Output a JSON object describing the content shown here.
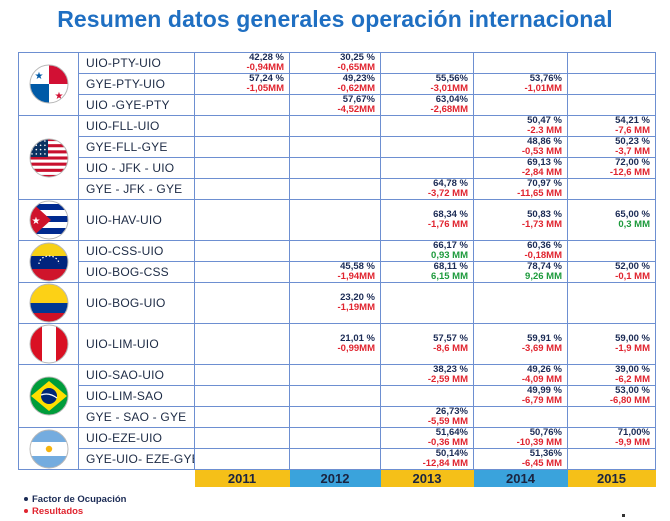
{
  "title": "Resumen datos generales operación internacional",
  "years": [
    "2011",
    "2012",
    "2013",
    "2014",
    "2015"
  ],
  "year_colors": [
    "#f5c018",
    "#3aa3dc",
    "#f5c018",
    "#3aa3dc",
    "#f5c018"
  ],
  "legend": {
    "factor": "Factor de Ocupación",
    "resultados": "Resultados"
  },
  "countries": [
    {
      "flag": "panama-flag-icon",
      "routes": [
        {
          "name": "UIO-PTY-UIO",
          "cells": [
            {
              "fo": "42,28 %",
              "res": "-0,94MM",
              "sign": "neg"
            },
            {
              "fo": "30,25 %",
              "res": "-0,65MM",
              "sign": "neg"
            },
            null,
            null,
            null
          ]
        },
        {
          "name": "GYE-PTY-UIO",
          "cells": [
            {
              "fo": "57,24 %",
              "res": "-1,05MM",
              "sign": "neg"
            },
            {
              "fo": "49,23%",
              "res": "-0,62MM",
              "sign": "neg"
            },
            {
              "fo": "55,56%",
              "res": "-3,01MM",
              "sign": "neg"
            },
            {
              "fo": "53,76%",
              "res": "-1,01MM",
              "sign": "neg"
            },
            null
          ]
        },
        {
          "name": "UIO -GYE-PTY",
          "cells": [
            null,
            {
              "fo": "57,67%",
              "res": "-4,52MM",
              "sign": "neg"
            },
            {
              "fo": "63,04%",
              "res": "-2,68MM",
              "sign": "neg"
            },
            null,
            null
          ]
        }
      ]
    },
    {
      "flag": "usa-flag-icon",
      "routes": [
        {
          "name": "UIO-FLL-UIO",
          "cells": [
            null,
            null,
            null,
            {
              "fo": "50,47 %",
              "res": "-2.3 MM",
              "sign": "neg"
            },
            {
              "fo": "54,21 %",
              "res": "-7,6 MM",
              "sign": "neg"
            }
          ]
        },
        {
          "name": "GYE-FLL-GYE",
          "cells": [
            null,
            null,
            null,
            {
              "fo": "48,86 %",
              "res": "-0,53 MM",
              "sign": "neg"
            },
            {
              "fo": "50,23 %",
              "res": "-3,7 MM",
              "sign": "neg"
            }
          ]
        },
        {
          "name": "UIO - JFK - UIO",
          "cells": [
            null,
            null,
            null,
            {
              "fo": "69,13 %",
              "res": "-2,84 MM",
              "sign": "neg"
            },
            {
              "fo": "72,00 %",
              "res": "-12,6 MM",
              "sign": "neg"
            }
          ]
        },
        {
          "name": "GYE - JFK - GYE",
          "cells": [
            null,
            null,
            {
              "fo": "64,78 %",
              "res": "-3,72 MM",
              "sign": "neg"
            },
            {
              "fo": "70,97 %",
              "res": "-11,65 MM",
              "sign": "neg"
            },
            null
          ]
        }
      ]
    },
    {
      "flag": "cuba-flag-icon",
      "routes": [
        {
          "name": "UIO-HAV-UIO",
          "cells": [
            null,
            null,
            {
              "fo": "68,34 %",
              "res": "-1,76 MM",
              "sign": "neg"
            },
            {
              "fo": "50,83 %",
              "res": "-1,73 MM",
              "sign": "neg"
            },
            {
              "fo": "65,00 %",
              "res": "0,3 MM",
              "sign": "pos"
            }
          ]
        }
      ]
    },
    {
      "flag": "venezuela-flag-icon",
      "routes": [
        {
          "name": "UIO-CSS-UIO",
          "cells": [
            null,
            null,
            {
              "fo": "66,17 %",
              "res": "0,93 MM",
              "sign": "pos"
            },
            {
              "fo": "60,36 %",
              "res": "-0,18MM",
              "sign": "neg"
            },
            null
          ]
        },
        {
          "name": "UIO-BOG-CSS",
          "cells": [
            null,
            {
              "fo": "45,58 %",
              "res": "-1,94MM",
              "sign": "neg"
            },
            {
              "fo": "68,11 %",
              "res": "6,15 MM",
              "sign": "pos"
            },
            {
              "fo": "78,74 %",
              "res": "9,26 MM",
              "sign": "pos"
            },
            {
              "fo": "52,00 %",
              "res": "-0,1 MM",
              "sign": "neg"
            }
          ]
        }
      ]
    },
    {
      "flag": "colombia-flag-icon",
      "routes": [
        {
          "name": "UIO-BOG-UIO",
          "cells": [
            null,
            {
              "fo": "23,20 %",
              "res": "-1,19MM",
              "sign": "neg"
            },
            null,
            null,
            null
          ]
        }
      ]
    },
    {
      "flag": "peru-flag-icon",
      "routes": [
        {
          "name": "UIO-LIM-UIO",
          "cells": [
            null,
            {
              "fo": "21,01 %",
              "res": "-0,99MM",
              "sign": "neg"
            },
            {
              "fo": "57,57 %",
              "res": "-8,6 MM",
              "sign": "neg"
            },
            {
              "fo": "59,91 %",
              "res": "-3,69 MM",
              "sign": "neg"
            },
            {
              "fo": "59,00 %",
              "res": "-1,9 MM",
              "sign": "neg"
            }
          ]
        }
      ]
    },
    {
      "flag": "brazil-flag-icon",
      "routes": [
        {
          "name": "UIO-SAO-UIO",
          "cells": [
            null,
            null,
            {
              "fo": "38,23 %",
              "res": "-2,59 MM",
              "sign": "neg"
            },
            {
              "fo": "49,26 %",
              "res": "-4,09 MM",
              "sign": "neg"
            },
            {
              "fo": "39,00 %",
              "res": "-6,2 MM",
              "sign": "neg"
            }
          ]
        },
        {
          "name": "UIO-LIM-SAO",
          "cells": [
            null,
            null,
            null,
            {
              "fo": "49,99 %",
              "res": "-6,79 MM",
              "sign": "neg"
            },
            {
              "fo": "53,00 %",
              "res": "-6,80 MM",
              "sign": "neg"
            }
          ]
        },
        {
          "name": "GYE - SAO - GYE",
          "cells": [
            null,
            null,
            {
              "fo": "26,73%",
              "res": "-5,59 MM",
              "sign": "neg"
            },
            null,
            null
          ]
        }
      ]
    },
    {
      "flag": "argentina-flag-icon",
      "routes": [
        {
          "name": "UIO-EZE-UIO",
          "cells": [
            null,
            null,
            {
              "fo": "51,64%",
              "res": "-0,36 MM",
              "sign": "neg"
            },
            {
              "fo": "50,76%",
              "res": "-10,39 MM",
              "sign": "neg"
            },
            {
              "fo": "71,00%",
              "res": "-9,9 MM",
              "sign": "neg"
            }
          ]
        },
        {
          "name": "GYE-UIO- EZE-GYE",
          "cells": [
            null,
            null,
            {
              "fo": "50,14%",
              "res": "-12,84 MM",
              "sign": "neg"
            },
            {
              "fo": "51,36%",
              "res": "-6,45 MM",
              "sign": "neg"
            },
            null
          ]
        }
      ]
    }
  ]
}
